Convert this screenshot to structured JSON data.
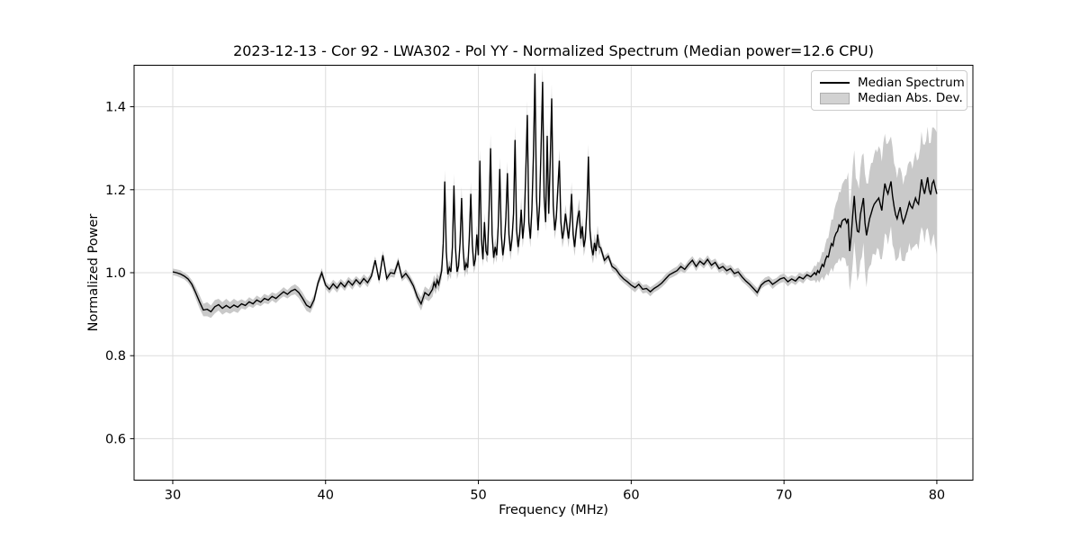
{
  "chart_data": {
    "type": "line",
    "title": "2023-12-13 - Cor 92 - LWA302 - Pol YY - Normalized Spectrum (Median power=12.6 CPU)",
    "xlabel": "Frequency (MHz)",
    "ylabel": "Normalized Power",
    "xlim": [
      27.47,
      82.36
    ],
    "ylim": [
      0.5,
      1.5
    ],
    "xticks": [
      30,
      40,
      50,
      60,
      70,
      80
    ],
    "xtick_labels": [
      "30",
      "40",
      "50",
      "60",
      "70",
      "80"
    ],
    "yticks": [
      0.6,
      0.8,
      1.0,
      1.2,
      1.4
    ],
    "ytick_labels": [
      "0.6",
      "0.8",
      "1.0",
      "1.2",
      "1.4"
    ],
    "grid": true,
    "legend_position": "upper right",
    "colors": {
      "line": "#000000",
      "band": "#c9c9c9",
      "grid": "#dcdcdc",
      "spine": "#000000"
    },
    "series": [
      {
        "name": "Median Spectrum",
        "type": "line",
        "values_key": "median"
      },
      {
        "name": "Median Abs. Dev.",
        "type": "band_half_width",
        "values_key": "mad"
      }
    ],
    "freq_segments": [
      {
        "start": 30.0,
        "step": 0.25,
        "count": 68
      },
      {
        "start": 47.0,
        "step": 0.1,
        "count": 110
      },
      {
        "start": 58.0,
        "step": 0.25,
        "count": 56
      },
      {
        "start": 72.0,
        "step": 0.1,
        "count": 81
      }
    ],
    "median": [
      1.002,
      1.0,
      0.997,
      0.992,
      0.985,
      0.972,
      0.952,
      0.93,
      0.91,
      0.912,
      0.906,
      0.918,
      0.923,
      0.914,
      0.921,
      0.915,
      0.922,
      0.917,
      0.925,
      0.921,
      0.93,
      0.925,
      0.934,
      0.929,
      0.938,
      0.934,
      0.943,
      0.938,
      0.946,
      0.954,
      0.948,
      0.956,
      0.96,
      0.952,
      0.938,
      0.922,
      0.916,
      0.935,
      0.975,
      1.0,
      0.97,
      0.96,
      0.973,
      0.963,
      0.976,
      0.966,
      0.98,
      0.97,
      0.983,
      0.973,
      0.986,
      0.976,
      0.992,
      1.03,
      0.982,
      1.042,
      0.986,
      1.0,
      0.998,
      1.026,
      0.988,
      0.998,
      0.985,
      0.968,
      0.942,
      0.925,
      0.952,
      0.945,
      0.96,
      0.976,
      0.966,
      0.982,
      0.972,
      0.988,
      1.005,
      1.07,
      1.22,
      1.05,
      0.996,
      1.012,
      1.002,
      1.062,
      1.21,
      1.06,
      1.002,
      1.016,
      1.072,
      1.18,
      1.058,
      1.006,
      1.022,
      1.012,
      1.082,
      1.19,
      1.068,
      1.016,
      1.032,
      1.092,
      1.042,
      1.27,
      1.08,
      1.032,
      1.122,
      1.052,
      1.042,
      1.152,
      1.3,
      1.092,
      1.036,
      1.062,
      1.042,
      1.112,
      1.25,
      1.092,
      1.042,
      1.072,
      1.132,
      1.24,
      1.092,
      1.052,
      1.082,
      1.142,
      1.32,
      1.102,
      1.062,
      1.092,
      1.152,
      1.082,
      1.122,
      1.242,
      1.38,
      1.122,
      1.082,
      1.152,
      1.282,
      1.48,
      1.182,
      1.102,
      1.162,
      1.302,
      1.46,
      1.182,
      1.122,
      1.33,
      1.142,
      1.262,
      1.42,
      1.162,
      1.102,
      1.132,
      1.202,
      1.27,
      1.122,
      1.082,
      1.102,
      1.142,
      1.112,
      1.082,
      1.122,
      1.19,
      1.092,
      1.062,
      1.102,
      1.132,
      1.15,
      1.082,
      1.112,
      1.062,
      1.082,
      1.152,
      1.28,
      1.102,
      1.062,
      1.042,
      1.072,
      1.052,
      1.092,
      1.062,
      1.06,
      1.03,
      1.04,
      1.015,
      1.008,
      0.995,
      0.985,
      0.978,
      0.97,
      0.964,
      0.972,
      0.96,
      0.962,
      0.954,
      0.962,
      0.968,
      0.975,
      0.985,
      0.995,
      1.0,
      1.005,
      1.015,
      1.008,
      1.02,
      1.03,
      1.015,
      1.028,
      1.02,
      1.032,
      1.018,
      1.025,
      1.01,
      1.015,
      1.005,
      1.01,
      0.998,
      1.002,
      0.99,
      0.98,
      0.972,
      0.962,
      0.952,
      0.97,
      0.978,
      0.982,
      0.972,
      0.978,
      0.985,
      0.988,
      0.978,
      0.985,
      0.98,
      0.99,
      0.985,
      0.995,
      0.99,
      1.0,
      0.995,
      1.005,
      1.0,
      1.01,
      1.02,
      1.015,
      1.03,
      1.04,
      1.038,
      1.055,
      1.07,
      1.065,
      1.085,
      1.095,
      1.1,
      1.115,
      1.11,
      1.125,
      1.128,
      1.13,
      1.12,
      1.13,
      1.052,
      1.09,
      1.14,
      1.185,
      1.13,
      1.1,
      1.098,
      1.14,
      1.16,
      1.18,
      1.12,
      1.09,
      1.11,
      1.13,
      1.142,
      1.155,
      1.165,
      1.17,
      1.175,
      1.18,
      1.165,
      1.15,
      1.185,
      1.215,
      1.2,
      1.19,
      1.205,
      1.22,
      1.185,
      1.16,
      1.14,
      1.13,
      1.145,
      1.158,
      1.135,
      1.12,
      1.13,
      1.142,
      1.155,
      1.17,
      1.16,
      1.155,
      1.168,
      1.18,
      1.17,
      1.165,
      1.195,
      1.225,
      1.205,
      1.19,
      1.21,
      1.23,
      1.2,
      1.188,
      1.215,
      1.222,
      1.205,
      1.19
    ],
    "mad": [
      0.008,
      0.008,
      0.009,
      0.008,
      0.009,
      0.01,
      0.014,
      0.016,
      0.015,
      0.017,
      0.015,
      0.016,
      0.014,
      0.015,
      0.016,
      0.014,
      0.015,
      0.014,
      0.011,
      0.01,
      0.011,
      0.01,
      0.011,
      0.01,
      0.011,
      0.01,
      0.01,
      0.011,
      0.01,
      0.011,
      0.01,
      0.011,
      0.012,
      0.013,
      0.014,
      0.014,
      0.013,
      0.012,
      0.01,
      0.011,
      0.009,
      0.01,
      0.01,
      0.011,
      0.009,
      0.01,
      0.01,
      0.011,
      0.009,
      0.01,
      0.01,
      0.011,
      0.009,
      0.01,
      0.01,
      0.011,
      0.009,
      0.01,
      0.01,
      0.011,
      0.009,
      0.01,
      0.01,
      0.011,
      0.014,
      0.016,
      0.015,
      0.014,
      0.018,
      0.018,
      0.018,
      0.018,
      0.018,
      0.018,
      0.018,
      0.022,
      0.028,
      0.022,
      0.018,
      0.018,
      0.018,
      0.022,
      0.028,
      0.022,
      0.018,
      0.018,
      0.022,
      0.028,
      0.022,
      0.018,
      0.018,
      0.018,
      0.022,
      0.028,
      0.022,
      0.018,
      0.018,
      0.022,
      0.018,
      0.028,
      0.022,
      0.018,
      0.022,
      0.022,
      0.018,
      0.028,
      0.034,
      0.022,
      0.018,
      0.022,
      0.018,
      0.022,
      0.028,
      0.022,
      0.018,
      0.022,
      0.022,
      0.028,
      0.022,
      0.022,
      0.022,
      0.022,
      0.034,
      0.022,
      0.022,
      0.022,
      0.028,
      0.022,
      0.022,
      0.028,
      0.034,
      0.022,
      0.022,
      0.028,
      0.028,
      0.036,
      0.028,
      0.022,
      0.028,
      0.034,
      0.036,
      0.028,
      0.022,
      0.034,
      0.022,
      0.028,
      0.035,
      0.028,
      0.022,
      0.022,
      0.028,
      0.028,
      0.022,
      0.022,
      0.022,
      0.022,
      0.022,
      0.022,
      0.022,
      0.028,
      0.022,
      0.022,
      0.022,
      0.022,
      0.028,
      0.022,
      0.022,
      0.022,
      0.022,
      0.028,
      0.03,
      0.022,
      0.022,
      0.02,
      0.022,
      0.02,
      0.022,
      0.02,
      0.01,
      0.011,
      0.009,
      0.01,
      0.01,
      0.011,
      0.009,
      0.01,
      0.01,
      0.011,
      0.009,
      0.01,
      0.01,
      0.011,
      0.009,
      0.01,
      0.01,
      0.011,
      0.009,
      0.01,
      0.01,
      0.011,
      0.009,
      0.01,
      0.01,
      0.011,
      0.009,
      0.01,
      0.01,
      0.011,
      0.009,
      0.01,
      0.01,
      0.011,
      0.009,
      0.01,
      0.01,
      0.011,
      0.009,
      0.01,
      0.01,
      0.011,
      0.009,
      0.01,
      0.01,
      0.011,
      0.009,
      0.01,
      0.01,
      0.011,
      0.009,
      0.01,
      0.01,
      0.011,
      0.009,
      0.01,
      0.018,
      0.02,
      0.022,
      0.024,
      0.026,
      0.03,
      0.034,
      0.038,
      0.042,
      0.046,
      0.052,
      0.058,
      0.063,
      0.068,
      0.072,
      0.076,
      0.08,
      0.084,
      0.088,
      0.092,
      0.096,
      0.105,
      0.112,
      0.095,
      0.108,
      0.118,
      0.11,
      0.098,
      0.12,
      0.104,
      0.112,
      0.122,
      0.108,
      0.118,
      0.125,
      0.105,
      0.115,
      0.122,
      0.11,
      0.12,
      0.128,
      0.115,
      0.125,
      0.132,
      0.118,
      0.128,
      0.12,
      0.11,
      0.122,
      0.115,
      0.108,
      0.118,
      0.104,
      0.112,
      0.098,
      0.108,
      0.095,
      0.105,
      0.092,
      0.102,
      0.095,
      0.105,
      0.098,
      0.108,
      0.095,
      0.105,
      0.112,
      0.1,
      0.11,
      0.104,
      0.115,
      0.105,
      0.118,
      0.108,
      0.122,
      0.112,
      0.125,
      0.135,
      0.128,
      0.14,
      0.148
    ]
  }
}
